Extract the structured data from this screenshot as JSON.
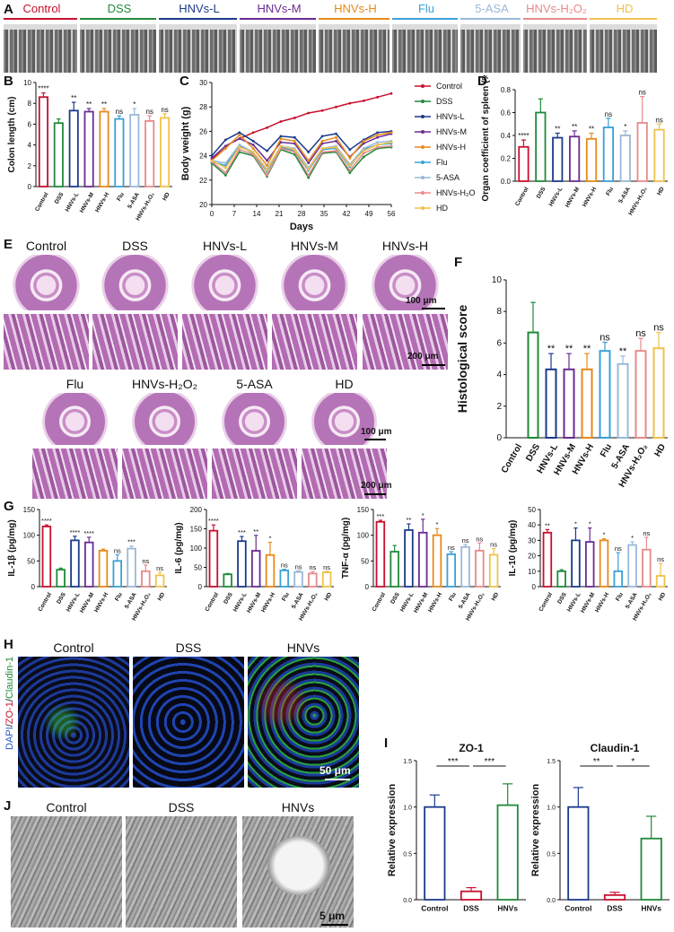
{
  "panels": {
    "A": "A",
    "B": "B",
    "C": "C",
    "D": "D",
    "E": "E",
    "F": "F",
    "G": "G",
    "H": "H",
    "I": "I",
    "J": "J"
  },
  "groups": [
    {
      "name": "Control",
      "color": "#c8102e"
    },
    {
      "name": "DSS",
      "color": "#1f8a3a"
    },
    {
      "name": "HNVs-L",
      "color": "#1b3a8c"
    },
    {
      "name": "HNVs-M",
      "color": "#6a2c91"
    },
    {
      "name": "HNVs-H",
      "color": "#e88a1a"
    },
    {
      "name": "Flu",
      "color": "#3aa0d8"
    },
    {
      "name": "5-ASA",
      "color": "#9bb8d8"
    },
    {
      "name": "HNVs-H₂O₂",
      "color": "#e88a8a"
    },
    {
      "name": "HD",
      "color": "#f0c24a"
    }
  ],
  "panelA": {
    "labels": [
      "Control",
      "DSS",
      "HNVs-L",
      "HNVs-M",
      "HNVs-H",
      "Flu",
      "5-ASA",
      "HNVs-H₂O₂",
      "HD"
    ]
  },
  "panelE": {
    "row1": [
      "Control",
      "DSS",
      "HNVs-L",
      "HNVs-M",
      "HNVs-H"
    ],
    "row2": [
      "Flu",
      "HNVs-H₂O₂",
      "5-ASA",
      "HD"
    ],
    "scale1": "100 μm",
    "scale2": "200 μm",
    "scale3": "100 μm",
    "scale4": "200 μm"
  },
  "panelH": {
    "labels": [
      "Control",
      "DSS",
      "HNVs"
    ],
    "ylabel_dapi": "DAPI",
    "ylabel_zo": "ZO-1",
    "ylabel_cl": "Claudin-1",
    "scale": "50 μm"
  },
  "panelJ": {
    "labels": [
      "Control",
      "DSS",
      "HNVs"
    ],
    "scale": "5 μm"
  },
  "chart_data": [
    {
      "id": "B",
      "type": "bar",
      "ylabel": "Colon length (cm)",
      "ylim": [
        0,
        10
      ],
      "yticks": [
        0,
        2,
        4,
        6,
        8,
        10
      ],
      "categories": [
        "Control",
        "DSS",
        "HNVs-L",
        "HNVs-M",
        "HNVs-H",
        "Flu",
        "5-ASA",
        "HNVs-H₂O₂",
        "HD"
      ],
      "values": [
        8.6,
        6.1,
        7.3,
        7.2,
        7.2,
        6.5,
        6.9,
        6.3,
        6.6
      ],
      "errors": [
        0.4,
        0.4,
        0.8,
        0.3,
        0.3,
        0.3,
        0.6,
        0.5,
        0.4
      ],
      "annotations": [
        "****",
        "",
        "**",
        "**",
        "**",
        "ns",
        "*",
        "ns",
        "ns"
      ]
    },
    {
      "id": "C",
      "type": "line",
      "ylabel": "Body weight (g)",
      "xlabel": "Days",
      "ylim": [
        20,
        30
      ],
      "yticks": [
        20,
        22,
        24,
        26,
        28,
        30
      ],
      "xticks": [
        0,
        7,
        14,
        21,
        28,
        35,
        42,
        49,
        56
      ],
      "series": [
        {
          "name": "Control",
          "values": [
            23.7,
            24.8,
            25.4,
            25.9,
            26.3,
            26.8,
            27.1,
            27.5,
            27.7,
            28.0,
            28.3,
            28.5,
            28.8,
            29.1
          ]
        },
        {
          "name": "DSS",
          "values": [
            23.4,
            22.4,
            24.3,
            24.0,
            22.3,
            24.5,
            24.1,
            22.2,
            24.2,
            24.3,
            22.6,
            23.9,
            24.6,
            24.7
          ]
        },
        {
          "name": "HNVs-L",
          "values": [
            24.0,
            25.3,
            25.9,
            25.2,
            24.4,
            25.6,
            25.5,
            24.3,
            25.6,
            25.8,
            24.5,
            25.3,
            25.9,
            26.0
          ]
        },
        {
          "name": "HNVs-M",
          "values": [
            23.8,
            24.8,
            25.4,
            24.9,
            23.6,
            25.1,
            25.0,
            23.4,
            25.0,
            25.2,
            23.9,
            25.0,
            25.5,
            25.8
          ]
        },
        {
          "name": "HNVs-H",
          "values": [
            23.6,
            24.6,
            25.7,
            24.6,
            23.2,
            25.4,
            25.2,
            23.6,
            25.2,
            25.5,
            23.8,
            25.2,
            25.7,
            25.9
          ]
        },
        {
          "name": "Flu",
          "values": [
            23.5,
            23.2,
            24.8,
            24.2,
            22.7,
            24.7,
            24.4,
            22.8,
            24.5,
            24.6,
            23.1,
            24.5,
            24.9,
            25.0
          ]
        },
        {
          "name": "5-ASA",
          "values": [
            23.6,
            23.4,
            24.9,
            24.3,
            22.9,
            24.8,
            24.6,
            23.0,
            24.6,
            24.8,
            23.3,
            24.6,
            25.1,
            25.2
          ]
        },
        {
          "name": "HNVs-H₂O₂",
          "values": [
            23.5,
            22.6,
            24.5,
            24.1,
            22.4,
            24.6,
            24.3,
            22.4,
            24.3,
            24.4,
            22.8,
            24.2,
            24.7,
            24.8
          ]
        },
        {
          "name": "HD",
          "values": [
            23.6,
            23.0,
            24.7,
            24.3,
            22.8,
            24.8,
            24.5,
            22.9,
            24.6,
            24.7,
            23.2,
            24.4,
            24.9,
            25.1
          ]
        }
      ]
    },
    {
      "id": "D",
      "type": "bar",
      "ylabel": "Organ coefficient of spleen (%)",
      "ylim": [
        0,
        0.8
      ],
      "yticks": [
        0.0,
        0.2,
        0.4,
        0.6,
        0.8
      ],
      "categories": [
        "Control",
        "DSS",
        "HNVs-L",
        "HNVs-M",
        "HNVs-H",
        "Flu",
        "5-ASA",
        "HNVs-H₂O₂",
        "HD"
      ],
      "values": [
        0.3,
        0.6,
        0.38,
        0.39,
        0.37,
        0.47,
        0.4,
        0.51,
        0.45
      ],
      "errors": [
        0.06,
        0.12,
        0.04,
        0.05,
        0.05,
        0.08,
        0.04,
        0.23,
        0.05
      ],
      "annotations": [
        "****",
        "",
        "**",
        "**",
        "**",
        "ns",
        "*",
        "ns",
        "ns"
      ]
    },
    {
      "id": "F",
      "type": "bar",
      "ylabel": "Histological score",
      "ylim": [
        0,
        10
      ],
      "yticks": [
        0,
        2,
        4,
        6,
        8,
        10
      ],
      "categories": [
        "Control",
        "DSS",
        "HNVs-L",
        "HNVs-M",
        "HNVs-H",
        "Flu",
        "5-ASA",
        "HNVs-H₂O₂",
        "HD"
      ],
      "values": [
        0,
        6.67,
        4.33,
        4.33,
        4.33,
        5.5,
        4.67,
        5.5,
        5.67
      ],
      "errors": [
        0,
        1.9,
        1.0,
        1.0,
        1.0,
        0.55,
        0.5,
        0.8,
        1.0
      ],
      "annotations": [
        "",
        "",
        "**",
        "**",
        "**",
        "ns",
        "**",
        "ns",
        "ns"
      ]
    },
    {
      "id": "G1",
      "type": "bar",
      "ylabel": "IL-1β (pg/mg)",
      "ylim": [
        0,
        150
      ],
      "yticks": [
        0,
        50,
        100,
        150
      ],
      "categories": [
        "Control",
        "DSS",
        "HNVs-L",
        "HNVs-M",
        "HNVs-H",
        "Flu",
        "5-ASA",
        "HNVs-H₂O₂",
        "HD"
      ],
      "values": [
        117,
        33,
        90,
        86,
        70,
        50,
        74,
        30,
        22
      ],
      "errors": [
        3,
        3,
        8,
        10,
        3,
        12,
        5,
        12,
        6
      ],
      "annotations": [
        "****",
        "",
        "****",
        "****",
        "",
        "ns",
        "***",
        "ns",
        "ns"
      ]
    },
    {
      "id": "G2",
      "type": "bar",
      "ylabel": "IL-6 (pg/mg)",
      "ylim": [
        0,
        200
      ],
      "yticks": [
        0,
        50,
        100,
        150,
        200
      ],
      "categories": [
        "Control",
        "DSS",
        "HNVs-L",
        "HNVs-M",
        "HNVs-H",
        "Flu",
        "5-ASA",
        "HNVs-H₂O₂",
        "HD"
      ],
      "values": [
        145,
        32,
        118,
        93,
        82,
        42,
        38,
        34,
        37
      ],
      "errors": [
        15,
        2,
        12,
        40,
        33,
        3,
        3,
        5,
        3
      ],
      "annotations": [
        "****",
        "",
        "***",
        "**",
        "*",
        "ns",
        "ns",
        "ns",
        "ns"
      ]
    },
    {
      "id": "G3",
      "type": "bar",
      "ylabel": "TNF-α (pg/mg)",
      "ylim": [
        0,
        150
      ],
      "yticks": [
        0,
        50,
        100,
        150
      ],
      "categories": [
        "Control",
        "DSS",
        "HNVs-L",
        "HNVs-M",
        "HNVs-H",
        "Flu",
        "5-ASA",
        "HNVs-H₂O₂",
        "HD"
      ],
      "values": [
        126,
        68,
        110,
        105,
        100,
        63,
        77,
        70,
        62
      ],
      "errors": [
        3,
        12,
        12,
        26,
        13,
        5,
        5,
        15,
        12
      ],
      "annotations": [
        "***",
        "",
        "**",
        "*",
        "*",
        "ns",
        "ns",
        "ns",
        "ns"
      ]
    },
    {
      "id": "G4",
      "type": "bar",
      "ylabel": "IL-10 (pg/mg)",
      "ylim": [
        0,
        50
      ],
      "yticks": [
        0,
        10,
        20,
        30,
        40,
        50
      ],
      "categories": [
        "Control",
        "DSS",
        "HNVs-L",
        "HNVs-M",
        "HNVs-H",
        "Flu",
        "5-ASA",
        "HNVs-H₂O₂",
        "HD"
      ],
      "values": [
        35,
        10,
        30,
        29,
        30,
        10,
        27,
        24,
        7
      ],
      "errors": [
        2,
        1,
        8,
        9,
        1,
        12,
        2,
        8,
        8
      ],
      "annotations": [
        "**",
        "",
        "*",
        "*",
        "*",
        "ns",
        "*",
        "ns",
        "ns"
      ]
    },
    {
      "id": "I1",
      "type": "bar",
      "title": "ZO-1",
      "ylabel": "Relative expression",
      "ylim": [
        0,
        1.5
      ],
      "yticks": [
        0.0,
        0.5,
        1.0,
        1.5
      ],
      "categories": [
        "Control",
        "DSS",
        "HNVs"
      ],
      "values": [
        1.0,
        0.09,
        1.02
      ],
      "errors": [
        0.13,
        0.04,
        0.23
      ],
      "brackets": [
        {
          "from": 0,
          "to": 1,
          "label": "***"
        },
        {
          "from": 1,
          "to": 2,
          "label": "***"
        }
      ]
    },
    {
      "id": "I2",
      "type": "bar",
      "title": "Claudin-1",
      "ylabel": "Relative expression",
      "ylim": [
        0,
        1.5
      ],
      "yticks": [
        0.0,
        0.5,
        1.0,
        1.5
      ],
      "categories": [
        "Control",
        "DSS",
        "HNVs"
      ],
      "values": [
        1.0,
        0.05,
        0.66
      ],
      "errors": [
        0.21,
        0.03,
        0.24
      ],
      "brackets": [
        {
          "from": 0,
          "to": 1,
          "label": "**"
        },
        {
          "from": 1,
          "to": 2,
          "label": "*"
        }
      ]
    }
  ]
}
